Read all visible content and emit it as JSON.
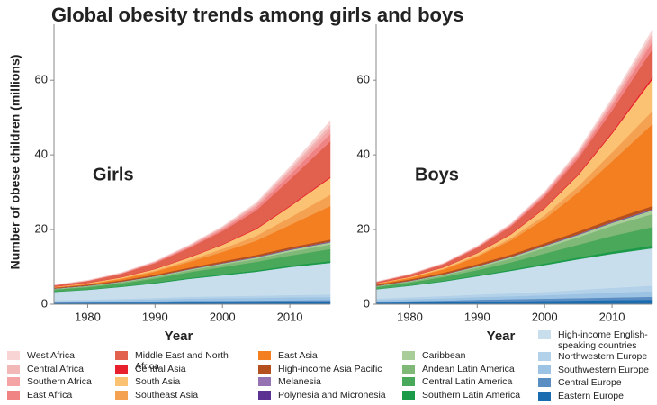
{
  "title": "Global obesity trends among girls and boys",
  "chart_data": [
    {
      "type": "area",
      "title": "Girls",
      "xlabel": "Year",
      "ylabel": "Number of obese children (millions)",
      "x": [
        1975,
        1980,
        1985,
        1990,
        1995,
        2000,
        2005,
        2010,
        2016
      ],
      "xlim": [
        1975,
        2016
      ],
      "xticks": [
        1980,
        1990,
        2000,
        2010
      ],
      "ylim": [
        0,
        75
      ],
      "yticks": [
        0,
        20,
        40,
        60
      ],
      "series": [
        {
          "name": "West Africa",
          "color": "#f8d4d4",
          "values": [
            0.02,
            0.03,
            0.05,
            0.08,
            0.12,
            0.2,
            0.35,
            0.6,
            1.0
          ]
        },
        {
          "name": "Central Africa",
          "color": "#f2b8b8",
          "values": [
            0.02,
            0.03,
            0.05,
            0.08,
            0.12,
            0.2,
            0.35,
            0.6,
            1.0
          ]
        },
        {
          "name": "Southern Africa",
          "color": "#f4a4a4",
          "values": [
            0.05,
            0.07,
            0.1,
            0.15,
            0.25,
            0.4,
            0.6,
            0.9,
            1.5
          ]
        },
        {
          "name": "East Africa",
          "color": "#f08484",
          "values": [
            0.05,
            0.07,
            0.1,
            0.2,
            0.3,
            0.5,
            0.8,
            1.3,
            2.0
          ]
        },
        {
          "name": "Middle East and North Africa",
          "color": "#e2604e",
          "values": [
            0.3,
            0.5,
            0.9,
            1.5,
            2.4,
            3.5,
            4.8,
            7.0,
            9.5
          ]
        },
        {
          "name": "Central Asia",
          "color": "#e8202e",
          "values": [
            0.05,
            0.05,
            0.07,
            0.1,
            0.12,
            0.15,
            0.2,
            0.25,
            0.3
          ]
        },
        {
          "name": "South Asia",
          "color": "#fbc273",
          "values": [
            0.1,
            0.15,
            0.25,
            0.4,
            0.7,
            1.1,
            1.8,
            2.9,
            4.5
          ]
        },
        {
          "name": "Southeast  Asia",
          "color": "#f5a152",
          "values": [
            0.05,
            0.1,
            0.15,
            0.3,
            0.5,
            0.8,
            1.3,
            2.0,
            3.0
          ]
        },
        {
          "name": "East Asia",
          "color": "#f47f20",
          "values": [
            0.1,
            0.2,
            0.4,
            0.8,
            1.5,
            2.5,
            3.8,
            6.0,
            9.0
          ]
        },
        {
          "name": "High-income Asia Pacific",
          "color": "#b4501e",
          "values": [
            0.2,
            0.25,
            0.3,
            0.35,
            0.4,
            0.45,
            0.5,
            0.5,
            0.5
          ]
        },
        {
          "name": "Melanesia",
          "color": "#9572b2",
          "values": [
            0.02,
            0.02,
            0.03,
            0.04,
            0.05,
            0.06,
            0.08,
            0.1,
            0.12
          ]
        },
        {
          "name": "Polynesia and Micronesia",
          "color": "#5b3192",
          "values": [
            0.02,
            0.02,
            0.03,
            0.04,
            0.05,
            0.06,
            0.07,
            0.08,
            0.1
          ]
        },
        {
          "name": "Caribbean",
          "color": "#a9cd98",
          "values": [
            0.1,
            0.12,
            0.15,
            0.2,
            0.25,
            0.3,
            0.4,
            0.5,
            0.6
          ]
        },
        {
          "name": "Andean Latin America",
          "color": "#80b878",
          "values": [
            0.2,
            0.25,
            0.3,
            0.4,
            0.5,
            0.7,
            0.8,
            1.0,
            1.2
          ]
        },
        {
          "name": "Central Latin America",
          "color": "#4aa85a",
          "values": [
            0.5,
            0.6,
            0.8,
            1.1,
            1.5,
            1.9,
            2.3,
            2.7,
            3.2
          ]
        },
        {
          "name": "Southern Latin America",
          "color": "#1b9a4a",
          "values": [
            0.1,
            0.12,
            0.15,
            0.2,
            0.25,
            0.3,
            0.35,
            0.4,
            0.5
          ]
        },
        {
          "name": "High-income English-speaking countries",
          "color": "#c9deed",
          "values": [
            2.2,
            2.6,
            3.2,
            3.9,
            4.8,
            5.6,
            6.4,
            7.5,
            8.5
          ]
        },
        {
          "name": "Northwestern Europe",
          "color": "#b3d1e8",
          "values": [
            0.3,
            0.3,
            0.35,
            0.4,
            0.5,
            0.5,
            0.6,
            0.6,
            0.7
          ]
        },
        {
          "name": "Southwestern Europe",
          "color": "#9cc3e4",
          "values": [
            0.3,
            0.35,
            0.4,
            0.5,
            0.6,
            0.7,
            0.7,
            0.8,
            0.8
          ]
        },
        {
          "name": "Central Europe",
          "color": "#5a8dc2",
          "values": [
            0.2,
            0.25,
            0.3,
            0.35,
            0.4,
            0.45,
            0.5,
            0.5,
            0.5
          ]
        },
        {
          "name": "Eastern Europe",
          "color": "#1a6cb0",
          "values": [
            0.3,
            0.35,
            0.4,
            0.45,
            0.5,
            0.5,
            0.5,
            0.55,
            0.6
          ]
        }
      ]
    },
    {
      "type": "area",
      "title": "Boys",
      "xlabel": "Year",
      "x": [
        1975,
        1980,
        1985,
        1990,
        1995,
        2000,
        2005,
        2010,
        2016
      ],
      "xlim": [
        1975,
        2016
      ],
      "xticks": [
        1980,
        1990,
        2000,
        2010
      ],
      "ylim": [
        0,
        75
      ],
      "yticks": [
        0,
        20,
        40,
        60
      ],
      "series": [
        {
          "values": [
            0.02,
            0.03,
            0.05,
            0.08,
            0.13,
            0.22,
            0.38,
            0.6,
            1.0
          ]
        },
        {
          "values": [
            0.02,
            0.03,
            0.05,
            0.08,
            0.13,
            0.22,
            0.38,
            0.6,
            1.0
          ]
        },
        {
          "values": [
            0.04,
            0.06,
            0.09,
            0.14,
            0.22,
            0.35,
            0.55,
            0.8,
            1.2
          ]
        },
        {
          "values": [
            0.05,
            0.07,
            0.1,
            0.2,
            0.3,
            0.5,
            0.8,
            1.3,
            2.0
          ]
        },
        {
          "values": [
            0.3,
            0.5,
            0.8,
            1.3,
            2.0,
            3.0,
            4.2,
            5.8,
            7.5
          ]
        },
        {
          "values": [
            0.05,
            0.06,
            0.08,
            0.1,
            0.15,
            0.2,
            0.3,
            0.4,
            0.6
          ]
        },
        {
          "values": [
            0.1,
            0.2,
            0.35,
            0.6,
            1.0,
            1.8,
            3.0,
            5.0,
            8.5
          ]
        },
        {
          "values": [
            0.05,
            0.1,
            0.2,
            0.35,
            0.6,
            1.0,
            1.6,
            2.4,
            3.5
          ]
        },
        {
          "values": [
            0.2,
            0.4,
            0.9,
            2.0,
            3.8,
            6.5,
            10.5,
            15.5,
            22.0
          ]
        },
        {
          "values": [
            0.3,
            0.35,
            0.4,
            0.5,
            0.55,
            0.6,
            0.7,
            0.75,
            0.8
          ]
        },
        {
          "values": [
            0.02,
            0.03,
            0.04,
            0.05,
            0.06,
            0.08,
            0.1,
            0.12,
            0.15
          ]
        },
        {
          "values": [
            0.02,
            0.03,
            0.04,
            0.05,
            0.06,
            0.08,
            0.1,
            0.12,
            0.15
          ]
        },
        {
          "values": [
            0.1,
            0.15,
            0.2,
            0.3,
            0.4,
            0.5,
            0.65,
            0.8,
            1.0
          ]
        },
        {
          "values": [
            0.2,
            0.3,
            0.45,
            0.7,
            1.0,
            1.5,
            2.0,
            2.7,
            3.5
          ]
        },
        {
          "values": [
            0.5,
            0.7,
            1.0,
            1.4,
            2.0,
            2.7,
            3.4,
            4.2,
            5.0
          ]
        },
        {
          "values": [
            0.1,
            0.15,
            0.2,
            0.25,
            0.3,
            0.4,
            0.5,
            0.6,
            0.7
          ]
        },
        {
          "values": [
            2.5,
            3.1,
            3.9,
            4.9,
            6.0,
            7.2,
            8.2,
            9.1,
            10.0
          ]
        },
        {
          "values": [
            0.4,
            0.5,
            0.6,
            0.7,
            0.8,
            0.9,
            1.1,
            1.3,
            1.5
          ]
        },
        {
          "values": [
            0.4,
            0.5,
            0.6,
            0.7,
            0.8,
            0.9,
            1.1,
            1.3,
            1.5
          ]
        },
        {
          "values": [
            0.3,
            0.35,
            0.4,
            0.5,
            0.55,
            0.6,
            0.65,
            0.7,
            0.8
          ]
        },
        {
          "values": [
            0.4,
            0.5,
            0.6,
            0.7,
            0.8,
            0.9,
            1.0,
            1.1,
            1.2
          ]
        }
      ]
    }
  ]
}
